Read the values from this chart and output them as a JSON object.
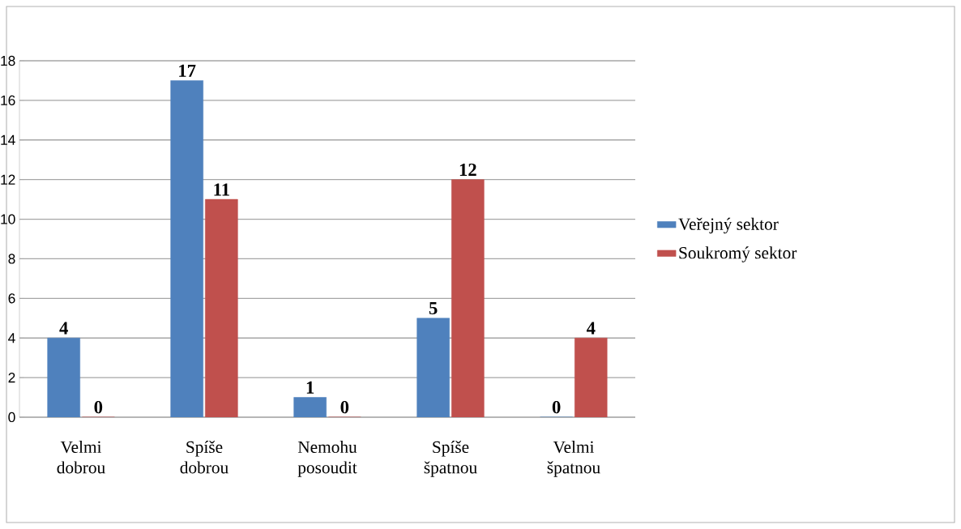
{
  "chart_data": {
    "type": "bar",
    "categories": [
      "Velmi dobrou",
      "Spíše dobrou",
      "Nemohu posoudit",
      "Spíše špatnou",
      "Velmi špatnou"
    ],
    "series": [
      {
        "name": "Veřejný sektor",
        "color": "#4f81bd",
        "values": [
          4,
          17,
          1,
          5,
          0
        ]
      },
      {
        "name": "Soukromý sektor",
        "color": "#c0504d",
        "values": [
          0,
          11,
          0,
          12,
          4
        ]
      }
    ],
    "ylim": [
      0,
      18
    ],
    "yticks": [
      0,
      2,
      4,
      6,
      8,
      10,
      12,
      14,
      16,
      18
    ],
    "grid": "y",
    "legend": "right",
    "data_labels": true
  }
}
